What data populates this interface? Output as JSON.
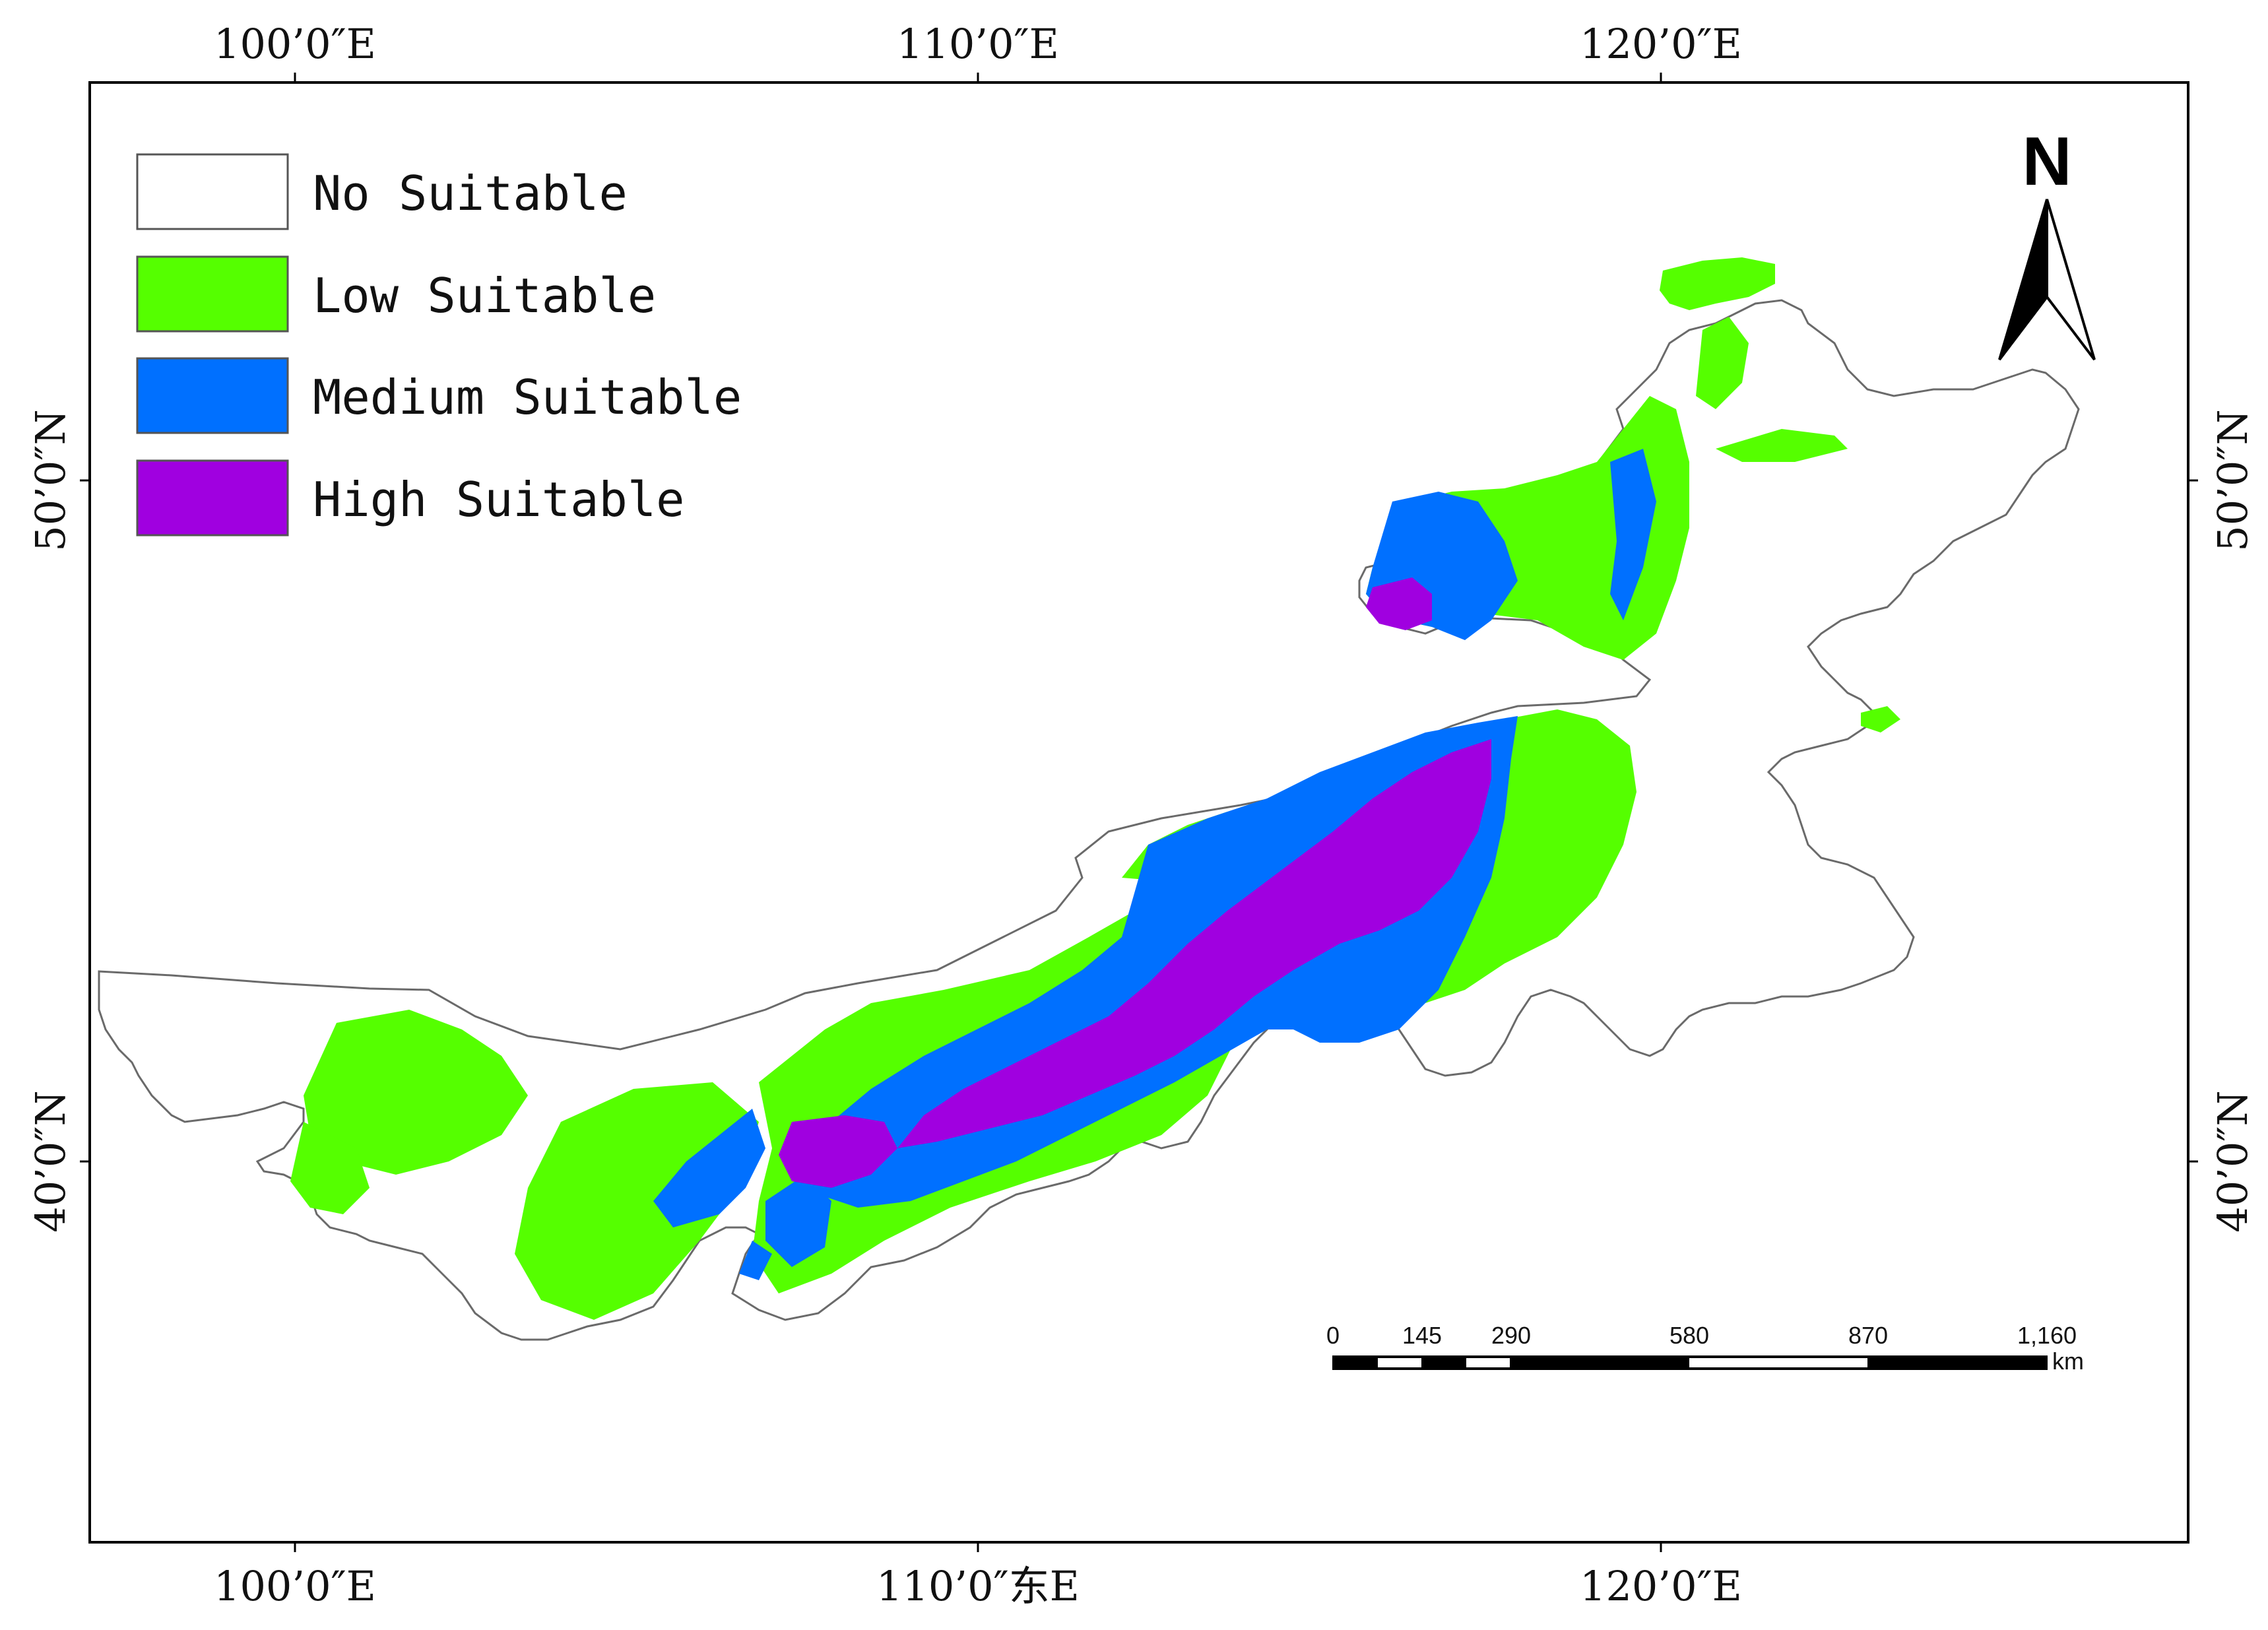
{
  "map": {
    "top_labels": [
      "100’0″E",
      "110’0″E",
      "120’0″E"
    ],
    "bottom_labels": [
      "100’0″E",
      "110’0″东E",
      "120’0″E"
    ],
    "left_labels": [
      "50’0″N",
      "40’0″N"
    ],
    "right_labels": [
      "50’0″N",
      "40’0″N"
    ]
  },
  "legend": [
    {
      "label": "No Suitable",
      "color": "#ffffff"
    },
    {
      "label": "Low Suitable",
      "color": "#55ff00"
    },
    {
      "label": "Medium Suitable",
      "color": "#0070ff"
    },
    {
      "label": "High Suitable",
      "color": "#a000e0"
    }
  ],
  "north_arrow": {
    "label": "N"
  },
  "scale_bar": {
    "ticks": [
      "0",
      "145",
      "290",
      "580",
      "870",
      "1,160"
    ],
    "unit": "km"
  }
}
